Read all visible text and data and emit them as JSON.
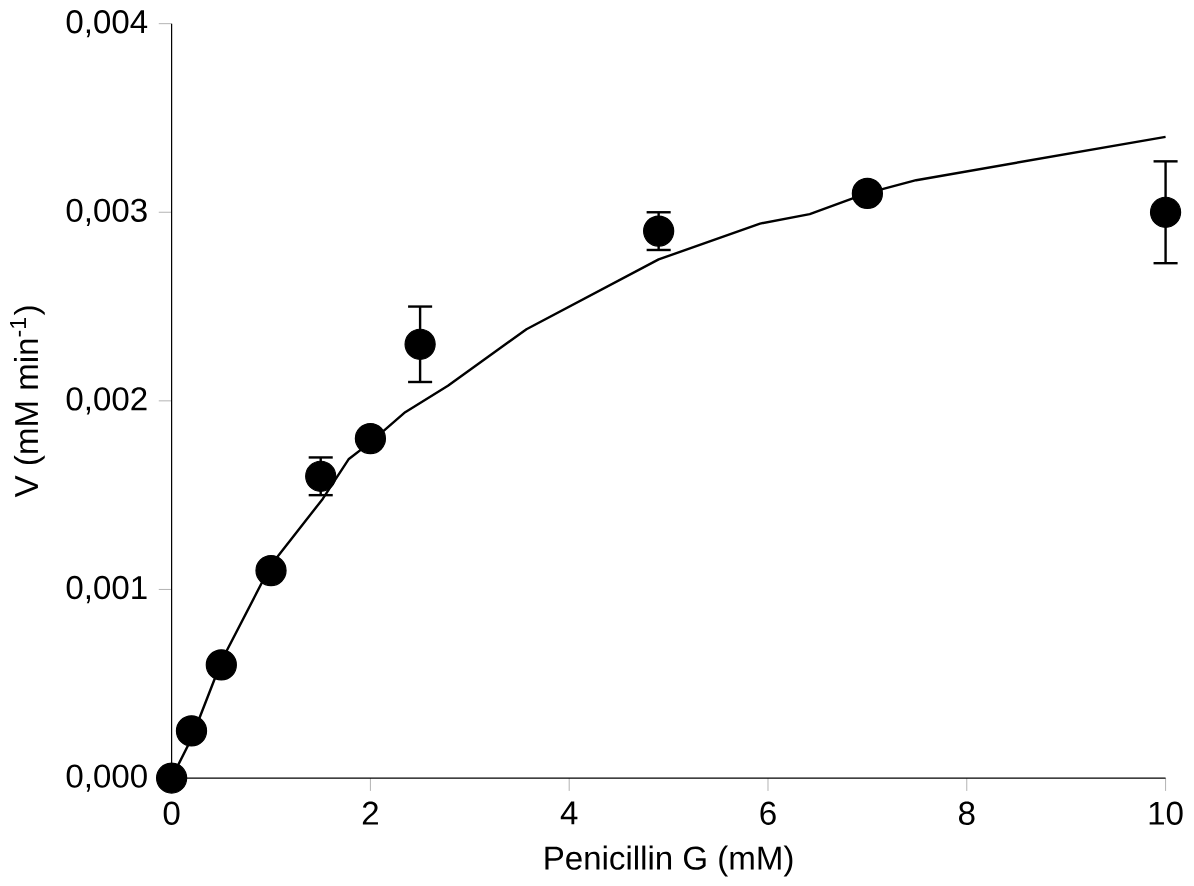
{
  "chart_data": {
    "type": "scatter",
    "xlabel": "Penicillin G (mM)",
    "ylabel": "V (mM min$^{-1}$)",
    "xlim": [
      0,
      10
    ],
    "ylim": [
      0,
      0.004
    ],
    "xticks": [
      0,
      2,
      4,
      6,
      8,
      10
    ],
    "yticks": [
      {
        "value": 0,
        "label": "0,000"
      },
      {
        "value": 0.001,
        "label": "0,001"
      },
      {
        "value": 0.002,
        "label": "0,002"
      },
      {
        "value": 0.003,
        "label": "0,003"
      },
      {
        "value": 0.004,
        "label": "0,004"
      }
    ],
    "series": [
      {
        "type": "line",
        "color": "#000000",
        "marker": "none",
        "x": [
          0,
          0.2,
          0.51,
          1.0,
          1.52,
          1.78,
          2.0,
          2.35,
          2.78,
          3.57,
          4.9,
          5.92,
          6.42,
          6.99,
          7.49,
          10
        ],
        "values": [
          0,
          0.00021,
          0.00063,
          0.00113,
          0.00148,
          0.00169,
          0.00178,
          0.00194,
          0.00208,
          0.00238,
          0.00275,
          0.00294,
          0.00299,
          0.0031,
          0.00317,
          0.0034
        ]
      },
      {
        "color": "#000000",
        "marker": "circle",
        "x": [
          0,
          0.2,
          0.5,
          1.0,
          1.5,
          2.0,
          2.5,
          4.9,
          7.0,
          10
        ],
        "values": [
          0,
          0.00025,
          0.0006,
          0.0011,
          0.0016,
          0.0018,
          0.0023,
          0.0029,
          0.0031,
          0.003
        ],
        "errors": [
          null,
          null,
          null,
          null,
          0.0001,
          null,
          0.0002,
          0.0001,
          null,
          0.00027
        ]
      }
    ]
  }
}
